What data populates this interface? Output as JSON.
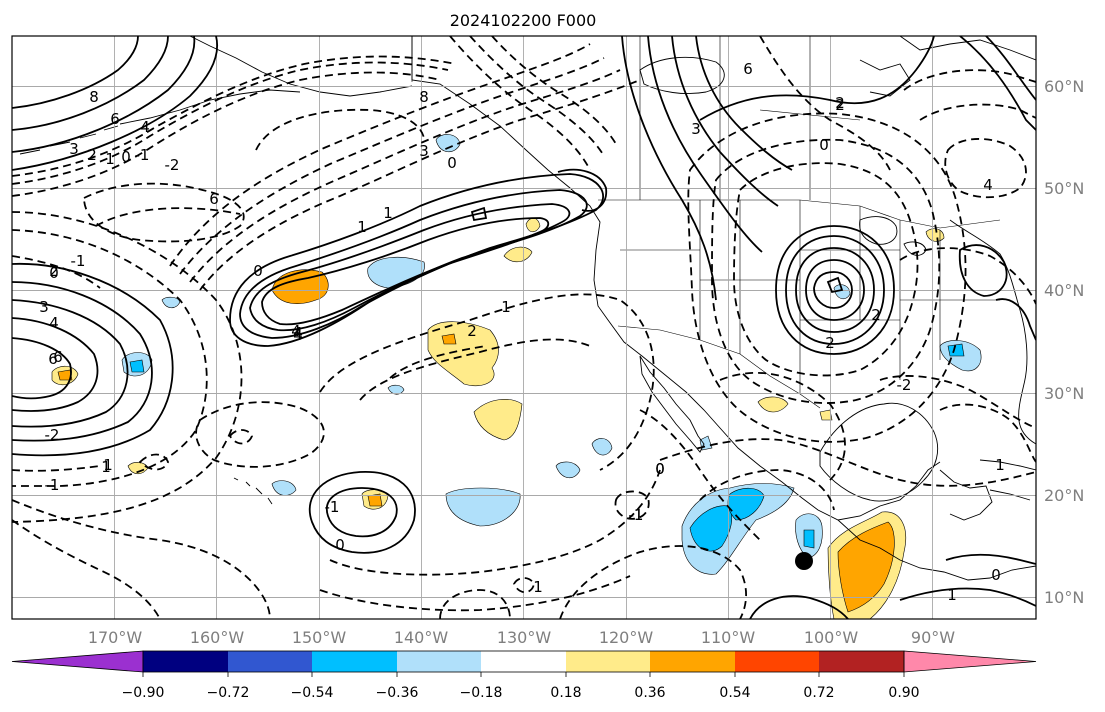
{
  "title": "2024102200 F000",
  "map": {
    "lon_labels": [
      "170°W",
      "160°W",
      "150°W",
      "140°W",
      "130°W",
      "120°W",
      "110°W",
      "100°W",
      "90°W"
    ],
    "lat_labels": [
      "60°N",
      "50°N",
      "40°N",
      "30°N",
      "20°N",
      "10°N"
    ],
    "grid": true,
    "marker": "black-dot",
    "contour_labels": [
      "8",
      "6",
      "4",
      "3",
      "2",
      "1",
      "0",
      "-1",
      "-2",
      "2",
      "4",
      "6",
      "3",
      "0",
      "-1",
      "1",
      "-1",
      "0",
      "6",
      "4",
      "3",
      "2",
      "0",
      "6",
      "-1",
      "4",
      "2",
      "1",
      "0",
      "2",
      "1",
      "2",
      "1",
      "0",
      "1",
      "0",
      "-1",
      "-2",
      "1",
      "4",
      "8",
      "3",
      "0",
      "6",
      "-2",
      "4",
      "1",
      "2",
      "-1",
      "0",
      "1"
    ]
  },
  "colorbar": {
    "tick_labels": [
      "−0.90",
      "−0.72",
      "−0.54",
      "−0.36",
      "−0.18",
      "0.18",
      "0.36",
      "0.54",
      "0.72",
      "0.90"
    ],
    "colors": [
      "#9b30d0",
      "#000080",
      "#3157d0",
      "#00bfff",
      "#b0e0fa",
      "#ffffff",
      "#ffeb8a",
      "#ffa500",
      "#ff4500",
      "#b22222",
      "#ff88aa",
      "#ff88aa"
    ],
    "extend": "both"
  }
}
